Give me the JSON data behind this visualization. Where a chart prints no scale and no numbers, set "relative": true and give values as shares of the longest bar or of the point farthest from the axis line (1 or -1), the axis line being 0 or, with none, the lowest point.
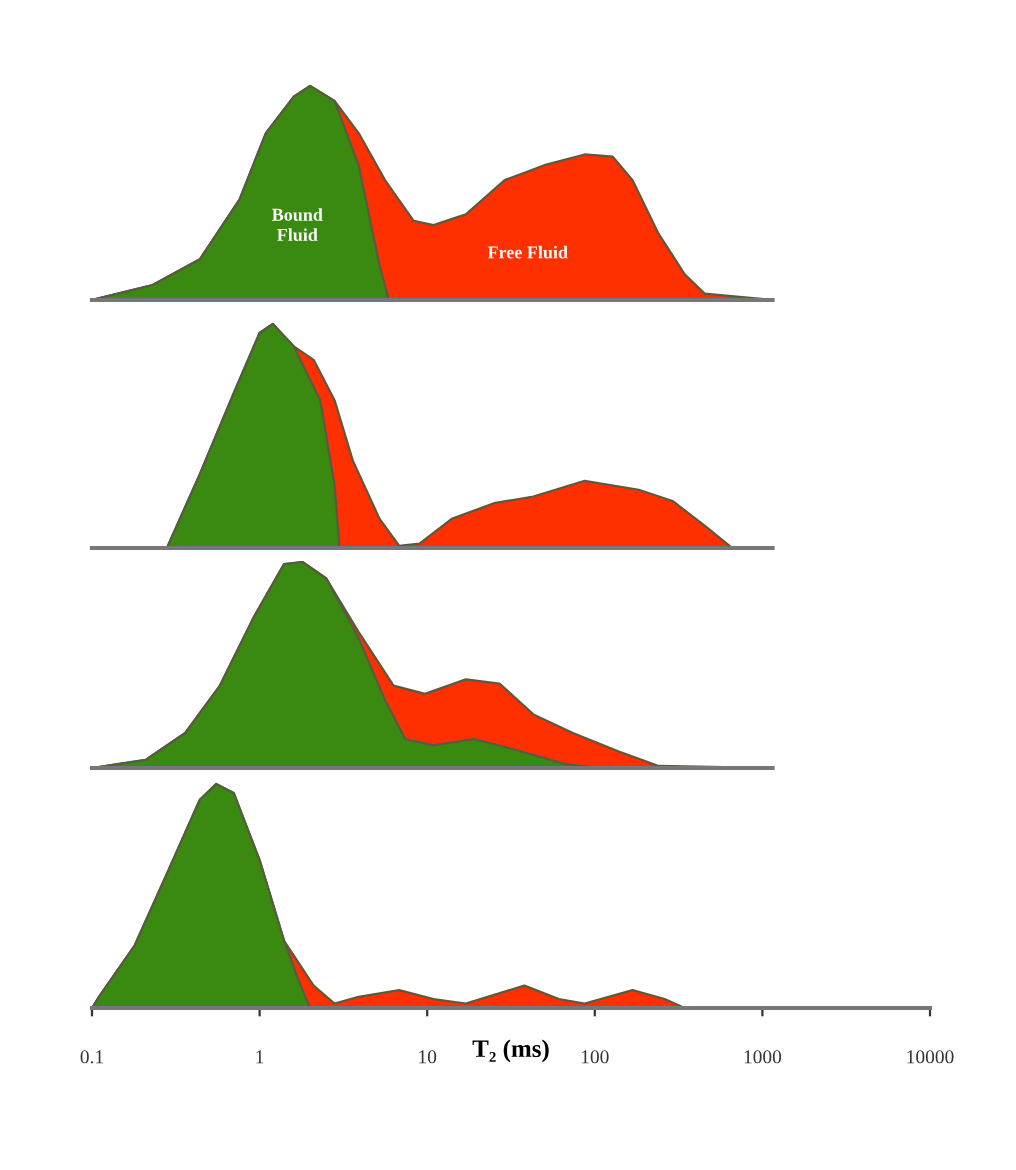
{
  "chart_data": [
    {
      "type": "area",
      "relative": true,
      "log": "x",
      "xlim": [
        0.1,
        10000
      ],
      "tick_labels": false,
      "grid": false,
      "legend": false,
      "annotations": [
        "Bound\nFluid",
        "Free Fluid"
      ],
      "series": [
        {
          "color": "#ff3000",
          "x": [
            0.1,
            0.23,
            0.44,
            0.76,
            1.09,
            1.6,
            2.0,
            2.8,
            3.9,
            5.6,
            8.3,
            10.9,
            17,
            29,
            50,
            87,
            128,
            168,
            240,
            344,
            452,
            1150
          ],
          "values": [
            0,
            0.07,
            0.19,
            0.47,
            0.78,
            0.95,
            1,
            0.93,
            0.78,
            0.56,
            0.37,
            0.35,
            0.4,
            0.56,
            0.63,
            0.68,
            0.67,
            0.56,
            0.31,
            0.12,
            0.03,
            0
          ]
        },
        {
          "color": "#3a8a12",
          "x": [
            0.1,
            0.23,
            0.44,
            0.76,
            1.09,
            1.6,
            2.0,
            2.8,
            3.9,
            5.2,
            5.9
          ],
          "values": [
            0,
            0.07,
            0.19,
            0.47,
            0.78,
            0.95,
            1,
            0.93,
            0.63,
            0.16,
            0
          ]
        }
      ]
    },
    {
      "type": "area",
      "relative": true,
      "log": "x",
      "xlim": [
        0.1,
        10000
      ],
      "tick_labels": false,
      "grid": false,
      "legend": false,
      "series": [
        {
          "color": "#ff3000",
          "x": [
            0.28,
            0.44,
            0.7,
            1.0,
            1.2,
            1.6,
            2.1,
            2.8,
            3.6,
            5.2,
            6.8,
            9.0,
            14,
            25,
            43,
            87,
            183,
            291,
            452,
            662,
            1150
          ],
          "values": [
            0,
            0.33,
            0.69,
            0.96,
            1,
            0.9,
            0.84,
            0.66,
            0.39,
            0.13,
            0.01,
            0.02,
            0.13,
            0.2,
            0.23,
            0.3,
            0.26,
            0.21,
            0.1,
            0,
            0
          ]
        },
        {
          "color": "#3a8a12",
          "x": [
            0.28,
            0.44,
            0.7,
            1.0,
            1.2,
            1.6,
            2.3,
            2.8,
            3.0
          ],
          "values": [
            0,
            0.33,
            0.69,
            0.96,
            1,
            0.9,
            0.66,
            0.28,
            0
          ]
        }
      ]
    },
    {
      "type": "area",
      "relative": true,
      "log": "x",
      "xlim": [
        0.1,
        10000
      ],
      "tick_labels": false,
      "grid": false,
      "legend": false,
      "series": [
        {
          "color": "#ff3000",
          "x": [
            0.1,
            0.21,
            0.36,
            0.58,
            0.92,
            1.4,
            1.8,
            2.5,
            3.9,
            6.3,
            9.7,
            17,
            27,
            43,
            74,
            139,
            240,
            1150
          ],
          "values": [
            0,
            0.04,
            0.17,
            0.4,
            0.73,
            0.99,
            1,
            0.92,
            0.66,
            0.4,
            0.36,
            0.43,
            0.41,
            0.26,
            0.17,
            0.08,
            0.01,
            0
          ]
        },
        {
          "color": "#3a8a12",
          "x": [
            0.1,
            0.21,
            0.36,
            0.58,
            0.92,
            1.4,
            1.8,
            2.5,
            3.9,
            5.6,
            7.4,
            10.9,
            19,
            33,
            66,
            106
          ],
          "values": [
            0,
            0.04,
            0.17,
            0.4,
            0.73,
            0.99,
            1,
            0.92,
            0.63,
            0.33,
            0.14,
            0.11,
            0.14,
            0.09,
            0.02,
            0
          ]
        }
      ]
    },
    {
      "type": "area",
      "relative": true,
      "log": "x",
      "xlim": [
        0.1,
        10000
      ],
      "xticks": [
        0.1,
        1,
        10,
        100,
        1000,
        10000
      ],
      "xlabel": "T₂ (ms)",
      "grid": false,
      "legend": false,
      "series": [
        {
          "color": "#ff3000",
          "x": [
            0.1,
            0.11,
            0.18,
            0.28,
            0.44,
            0.55,
            0.7,
            1.0,
            1.4,
            2.1,
            2.8,
            3.9,
            6.8,
            10.9,
            17,
            38,
            61,
            87,
            168,
            261,
            344,
            1150
          ],
          "values": [
            0,
            0.05,
            0.28,
            0.6,
            0.93,
            1,
            0.96,
            0.66,
            0.3,
            0.1,
            0.02,
            0.05,
            0.08,
            0.04,
            0.02,
            0.1,
            0.04,
            0.02,
            0.08,
            0.04,
            0,
            0
          ]
        },
        {
          "color": "#3a8a12",
          "x": [
            0.1,
            0.11,
            0.18,
            0.28,
            0.44,
            0.55,
            0.7,
            1.0,
            1.4,
            1.8,
            2.0
          ],
          "values": [
            0,
            0.05,
            0.28,
            0.6,
            0.93,
            1,
            0.96,
            0.66,
            0.3,
            0.08,
            0
          ]
        }
      ]
    }
  ]
}
